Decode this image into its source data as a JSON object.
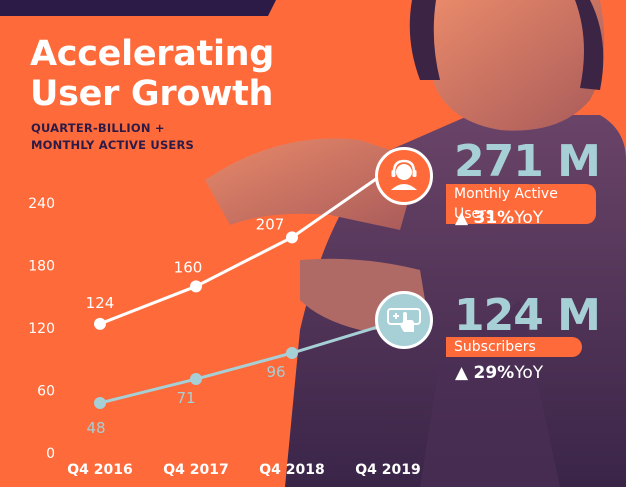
{
  "header": {
    "title_line1": "Accelerating",
    "title_line2": "User Growth",
    "subtitle_line1": "QUARTER-BILLION +",
    "subtitle_line2": "MONTHLY ACTIVE USERS"
  },
  "stats": {
    "mau": {
      "value": "271 M",
      "label": "Monthly Active Users",
      "yoy_value": "31%",
      "yoy_suffix": "YoY"
    },
    "subs": {
      "value": "124 M",
      "label": "Subscribers",
      "yoy_value": "29%",
      "yoy_suffix": "YoY"
    }
  },
  "icons": {
    "mau": "headset-person-icon",
    "subs": "hand-card-icon"
  },
  "colors": {
    "background": "#ff6a3a",
    "mau_line": "#ffffff",
    "subs_line": "#a6cfd6",
    "title_text": "#ffffff",
    "subtitle_text": "#2c1b46",
    "stat_number": "#a6cfd6"
  },
  "chart_data": {
    "type": "line",
    "categories": [
      "Q4 2016",
      "Q4 2017",
      "Q4 2018",
      "Q4 2019"
    ],
    "ylim": [
      0,
      240
    ],
    "yticks": [
      0,
      60,
      120,
      180,
      240
    ],
    "grid": false,
    "series": [
      {
        "key": "mau",
        "values": [
          124,
          160,
          207,
          271
        ],
        "labels": [
          "124",
          "160",
          "207",
          null
        ],
        "color": "#ffffff"
      },
      {
        "key": "subs",
        "values": [
          48,
          71,
          96,
          124
        ],
        "labels": [
          "48",
          "71",
          "96",
          null
        ],
        "color": "#a6cfd6"
      }
    ]
  }
}
